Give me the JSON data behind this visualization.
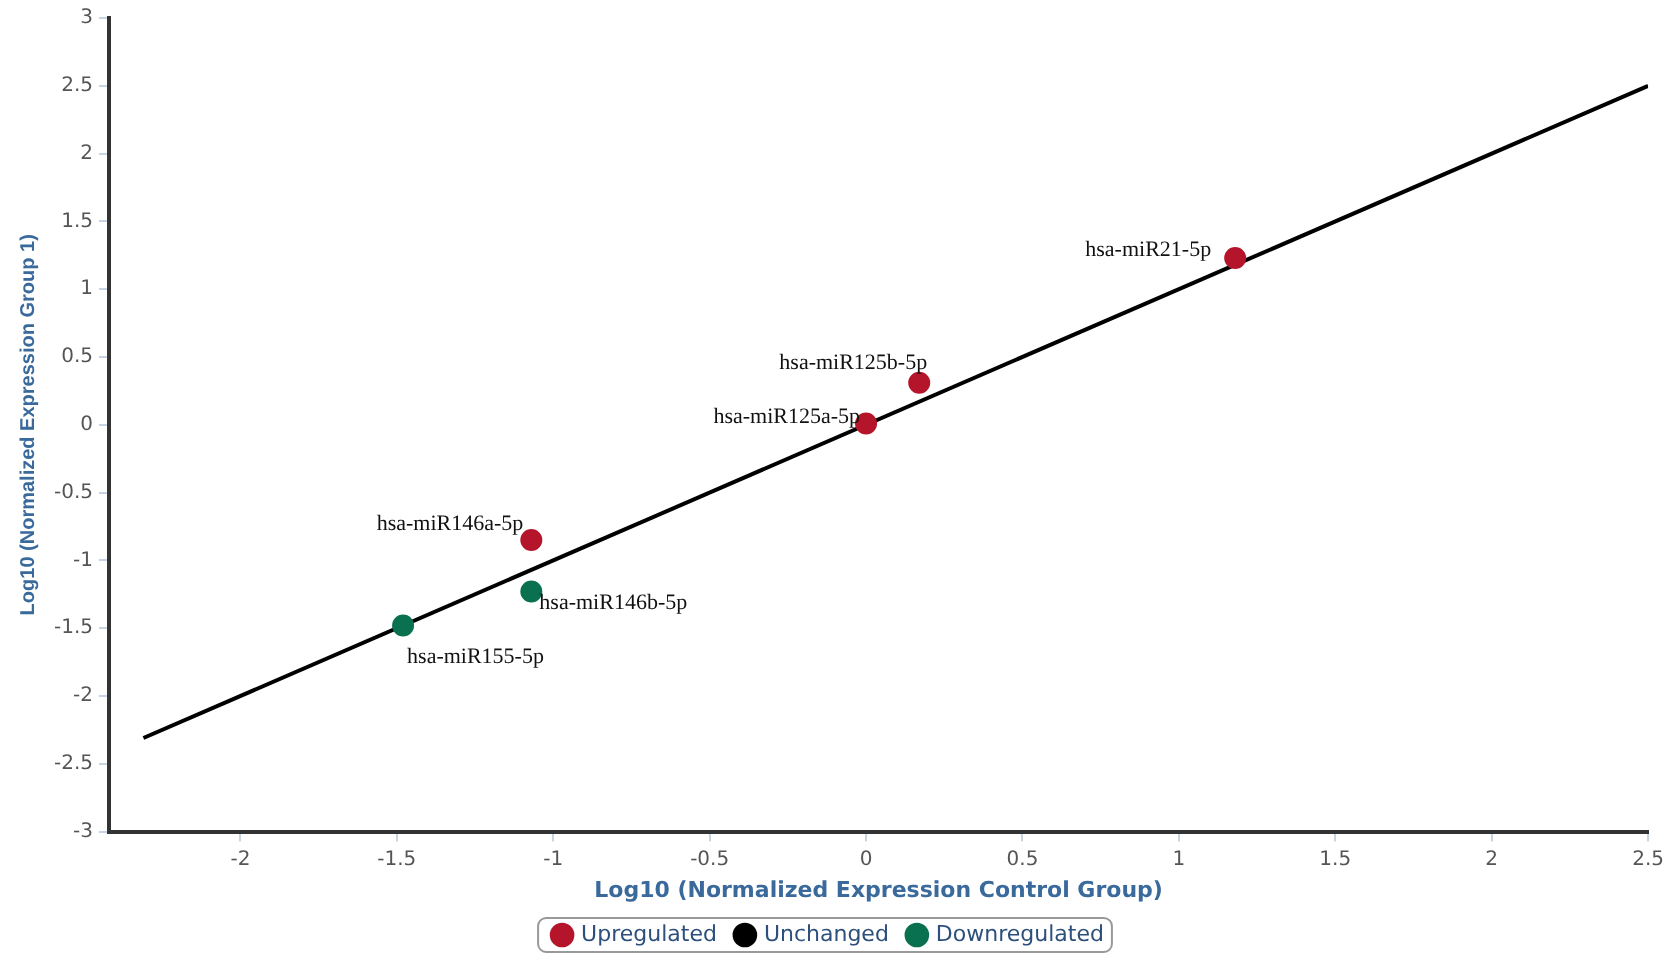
{
  "chart_data": {
    "type": "scatter",
    "xlabel": "Log10 (Normalized Expression Control Group)",
    "ylabel": "Log10 (Normalized Expression Group 1)",
    "xlim": [
      -2.42,
      2.5
    ],
    "xticks": [
      -2,
      -1.5,
      -1,
      -0.5,
      0,
      0.5,
      1,
      1.5,
      2,
      2.5
    ],
    "ylim": [
      -3,
      3
    ],
    "yticks": [
      -3,
      -2.5,
      -2,
      -1.5,
      -1,
      -0.5,
      0,
      0.5,
      1,
      1.5,
      2,
      2.5,
      3
    ],
    "grid": false,
    "legend": "bottom",
    "marker": "circle",
    "series": [
      {
        "name": "Upregulated",
        "color": "#b5152b",
        "x": [
          1.18,
          0.17,
          0.0,
          -1.07
        ],
        "values": [
          1.23,
          0.31,
          0.01,
          -0.85
        ]
      },
      {
        "name": "Unchanged",
        "color": "#000000"
      },
      {
        "name": "Downregulated",
        "color": "#0a7150",
        "x": [
          -1.07,
          -1.48
        ],
        "values": [
          -1.23,
          -1.48
        ]
      },
      {
        "type": "line",
        "marker": "none",
        "color": "#000000",
        "x": [
          -2.31,
          2.5
        ],
        "values": [
          -2.31,
          2.5
        ]
      }
    ],
    "annotations": [
      {
        "text": "hsa-miR21-5p",
        "x": 1.18,
        "y": 1.23
      },
      {
        "text": "hsa-miR125b-5p",
        "x": 0.17,
        "y": 0.31
      },
      {
        "text": "hsa-miR125a-5p",
        "x": 0.0,
        "y": 0.01
      },
      {
        "text": "hsa-miR146a-5p",
        "x": -1.07,
        "y": -0.85
      },
      {
        "text": "hsa-miR146b-5p",
        "x": -1.07,
        "y": -1.23
      },
      {
        "text": "hsa-miR155-5p",
        "x": -1.48,
        "y": -1.48
      }
    ]
  }
}
